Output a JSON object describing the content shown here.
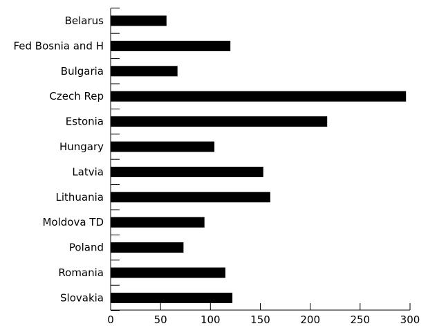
{
  "chart_data": {
    "type": "bar",
    "orientation": "horizontal",
    "title": "",
    "xlabel": "",
    "ylabel": "",
    "categories": [
      "Belarus",
      "Fed Bosnia and H",
      "Bulgaria",
      "Czech Rep",
      "Estonia",
      "Hungary",
      "Latvia",
      "Lithuania",
      "Moldova TD",
      "Poland",
      "Romania",
      "Slovakia"
    ],
    "values": [
      56,
      120,
      67,
      296,
      217,
      104,
      153,
      160,
      94,
      73,
      115,
      122
    ],
    "xlim": [
      0,
      300
    ],
    "xticks": [
      0,
      50,
      100,
      150,
      200,
      250,
      300
    ],
    "grid": false,
    "legend": "none",
    "bar_color": "#000000"
  }
}
